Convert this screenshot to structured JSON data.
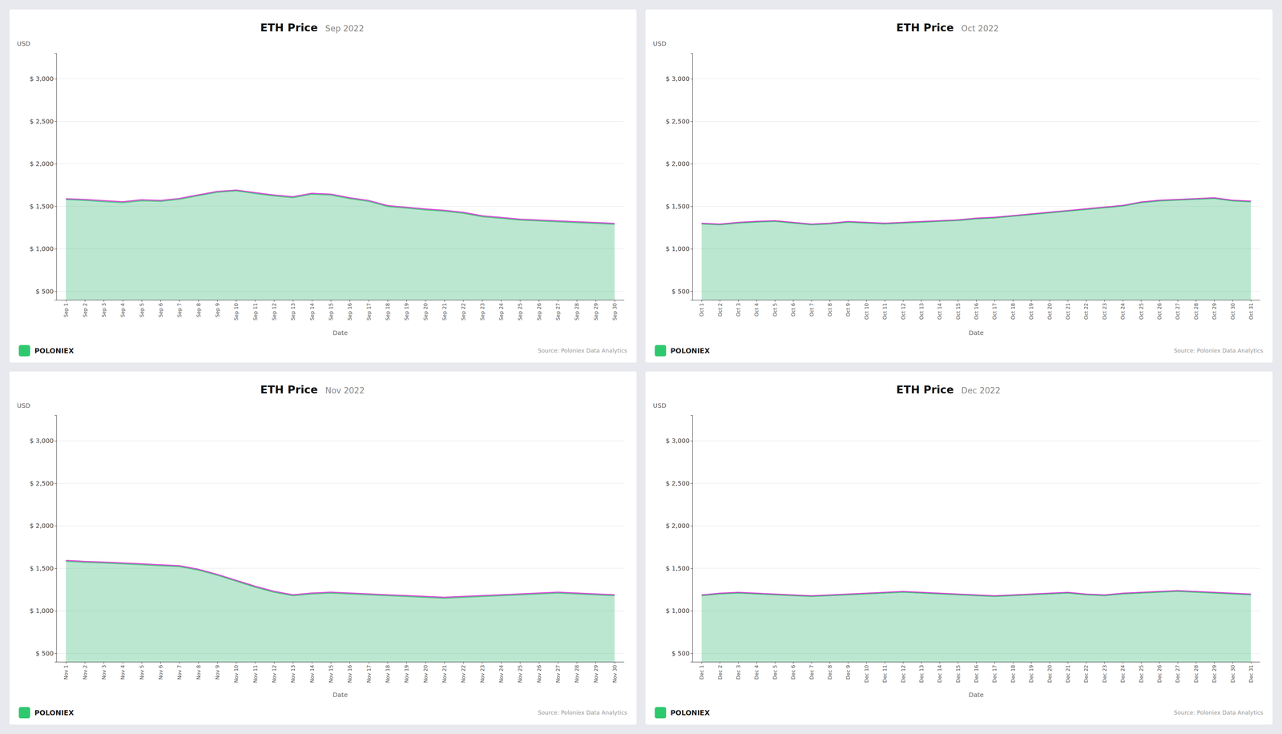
{
  "chart_data": [
    {
      "type": "area",
      "title": "ETH Price",
      "subtitle": "Sep 2022",
      "xlabel": "Date",
      "ylabel": "USD",
      "categories": [
        "Sep 1",
        "Sep 2",
        "Sep 3",
        "Sep 4",
        "Sep 5",
        "Sep 6",
        "Sep 7",
        "Sep 8",
        "Sep 9",
        "Sep 10",
        "Sep 11",
        "Sep 12",
        "Sep 13",
        "Sep 14",
        "Sep 15",
        "Sep 16",
        "Sep 17",
        "Sep 18",
        "Sep 19",
        "Sep 20",
        "Sep 21",
        "Sep 22",
        "Sep 23",
        "Sep 24",
        "Sep 25",
        "Sep 26",
        "Sep 27",
        "Sep 28",
        "Sep 29",
        "Sep 30"
      ],
      "series": [
        {
          "color": "#3dba78",
          "values": [
            1580,
            1570,
            1555,
            1542,
            1565,
            1558,
            1582,
            1625,
            1665,
            1682,
            1650,
            1622,
            1602,
            1642,
            1632,
            1590,
            1558,
            1498,
            1478,
            1458,
            1442,
            1418,
            1378,
            1358,
            1338,
            1328,
            1318,
            1308,
            1298,
            1288
          ]
        },
        {
          "color": "#cc44cc",
          "values": [
            1590,
            1582,
            1568,
            1555,
            1578,
            1570,
            1594,
            1636,
            1676,
            1692,
            1662,
            1634,
            1614,
            1654,
            1644,
            1602,
            1570,
            1510,
            1490,
            1470,
            1454,
            1430,
            1390,
            1370,
            1350,
            1340,
            1330,
            1320,
            1310,
            1300
          ]
        }
      ],
      "ylim": [
        400,
        3300
      ],
      "yticks": [
        {
          "value": 500,
          "label": "$ 500"
        },
        {
          "value": 1000,
          "label": "$ 1,000"
        },
        {
          "value": 1500,
          "label": "$ 1,500"
        },
        {
          "value": 2000,
          "label": "$ 2,000"
        },
        {
          "value": 2500,
          "label": "$ 2,500"
        },
        {
          "value": 3000,
          "label": "$ 3,000"
        }
      ],
      "grid": true,
      "annotations": [
        "POLONIEX",
        "Source: Poloniex Data Analytics"
      ]
    },
    {
      "type": "area",
      "title": "ETH Price",
      "subtitle": "Oct 2022",
      "xlabel": "Date",
      "ylabel": "USD",
      "categories": [
        "Oct 1",
        "Oct 2",
        "Oct 3",
        "Oct 4",
        "Oct 5",
        "Oct 6",
        "Oct 7",
        "Oct 8",
        "Oct 9",
        "Oct 10",
        "Oct 11",
        "Oct 12",
        "Oct 13",
        "Oct 14",
        "Oct 15",
        "Oct 16",
        "Oct 17",
        "Oct 18",
        "Oct 19",
        "Oct 20",
        "Oct 21",
        "Oct 22",
        "Oct 23",
        "Oct 24",
        "Oct 25",
        "Oct 26",
        "Oct 27",
        "Oct 28",
        "Oct 29",
        "Oct 30",
        "Oct 31"
      ],
      "series": [
        {
          "color": "#3dba78",
          "values": [
            1292,
            1282,
            1302,
            1314,
            1322,
            1302,
            1282,
            1292,
            1312,
            1302,
            1292,
            1302,
            1312,
            1322,
            1332,
            1352,
            1362,
            1382,
            1402,
            1422,
            1442,
            1462,
            1482,
            1502,
            1542,
            1562,
            1572,
            1582,
            1592,
            1562,
            1552
          ]
        },
        {
          "color": "#cc44cc",
          "values": [
            1302,
            1292,
            1312,
            1324,
            1332,
            1312,
            1292,
            1302,
            1322,
            1312,
            1302,
            1312,
            1322,
            1332,
            1342,
            1362,
            1372,
            1392,
            1412,
            1432,
            1452,
            1472,
            1492,
            1512,
            1552,
            1572,
            1582,
            1592,
            1602,
            1572,
            1562
          ]
        }
      ],
      "ylim": [
        400,
        3300
      ],
      "yticks": [
        {
          "value": 500,
          "label": "$ 500"
        },
        {
          "value": 1000,
          "label": "$ 1,000"
        },
        {
          "value": 1500,
          "label": "$ 1,500"
        },
        {
          "value": 2000,
          "label": "$ 2,000"
        },
        {
          "value": 2500,
          "label": "$ 2,500"
        },
        {
          "value": 3000,
          "label": "$ 3,000"
        }
      ],
      "grid": true,
      "annotations": [
        "POLONIEX",
        "Source: Poloniex Data Analytics"
      ]
    },
    {
      "type": "area",
      "title": "ETH Price",
      "subtitle": "Nov 2022",
      "xlabel": "Date",
      "ylabel": "USD",
      "categories": [
        "Nov 1",
        "Nov 2",
        "Nov 3",
        "Nov 4",
        "Nov 5",
        "Nov 6",
        "Nov 7",
        "Nov 8",
        "Nov 9",
        "Nov 10",
        "Nov 11",
        "Nov 12",
        "Nov 13",
        "Nov 14",
        "Nov 15",
        "Nov 16",
        "Nov 17",
        "Nov 18",
        "Nov 19",
        "Nov 20",
        "Nov 21",
        "Nov 22",
        "Nov 23",
        "Nov 24",
        "Nov 25",
        "Nov 26",
        "Nov 27",
        "Nov 28",
        "Nov 29",
        "Nov 30"
      ],
      "series": [
        {
          "color": "#3dba78",
          "values": [
            1582,
            1570,
            1562,
            1552,
            1542,
            1530,
            1520,
            1478,
            1418,
            1348,
            1278,
            1218,
            1178,
            1198,
            1208,
            1198,
            1188,
            1178,
            1168,
            1158,
            1148,
            1158,
            1168,
            1178,
            1188,
            1198,
            1208,
            1198,
            1188,
            1178
          ]
        },
        {
          "color": "#cc44cc",
          "values": [
            1594,
            1582,
            1574,
            1564,
            1554,
            1542,
            1532,
            1490,
            1430,
            1360,
            1290,
            1230,
            1190,
            1210,
            1220,
            1210,
            1200,
            1190,
            1180,
            1170,
            1160,
            1170,
            1180,
            1190,
            1200,
            1210,
            1220,
            1210,
            1200,
            1190
          ]
        }
      ],
      "ylim": [
        400,
        3300
      ],
      "yticks": [
        {
          "value": 500,
          "label": "$ 500"
        },
        {
          "value": 1000,
          "label": "$ 1,000"
        },
        {
          "value": 1500,
          "label": "$ 1,500"
        },
        {
          "value": 2000,
          "label": "$ 2,000"
        },
        {
          "value": 2500,
          "label": "$ 2,500"
        },
        {
          "value": 3000,
          "label": "$ 3,000"
        }
      ],
      "grid": true,
      "annotations": [
        "POLONIEX",
        "Source: Poloniex Data Analytics"
      ]
    },
    {
      "type": "area",
      "title": "ETH Price",
      "subtitle": "Dec 2022",
      "xlabel": "Date",
      "ylabel": "USD",
      "categories": [
        "Dec 1",
        "Dec 2",
        "Dec 3",
        "Dec 4",
        "Dec 5",
        "Dec 6",
        "Dec 7",
        "Dec 8",
        "Dec 9",
        "Dec 10",
        "Dec 11",
        "Dec 12",
        "Dec 13",
        "Dec 14",
        "Dec 15",
        "Dec 16",
        "Dec 17",
        "Dec 18",
        "Dec 19",
        "Dec 20",
        "Dec 21",
        "Dec 22",
        "Dec 23",
        "Dec 24",
        "Dec 25",
        "Dec 26",
        "Dec 27",
        "Dec 28",
        "Dec 29",
        "Dec 30",
        "Dec 31"
      ],
      "series": [
        {
          "color": "#3dba78",
          "values": [
            1178,
            1198,
            1208,
            1198,
            1188,
            1178,
            1168,
            1178,
            1188,
            1198,
            1208,
            1218,
            1208,
            1198,
            1188,
            1178,
            1168,
            1178,
            1188,
            1198,
            1208,
            1188,
            1178,
            1198,
            1208,
            1218,
            1228,
            1218,
            1208,
            1198,
            1188
          ]
        },
        {
          "color": "#cc44cc",
          "values": [
            1188,
            1208,
            1218,
            1208,
            1198,
            1188,
            1178,
            1188,
            1198,
            1208,
            1218,
            1228,
            1218,
            1208,
            1198,
            1188,
            1178,
            1188,
            1198,
            1208,
            1218,
            1198,
            1188,
            1208,
            1218,
            1228,
            1238,
            1228,
            1218,
            1208,
            1198
          ]
        }
      ],
      "ylim": [
        400,
        3300
      ],
      "yticks": [
        {
          "value": 500,
          "label": "$ 500"
        },
        {
          "value": 1000,
          "label": "$ 1,000"
        },
        {
          "value": 1500,
          "label": "$ 1,500"
        },
        {
          "value": 2000,
          "label": "$ 2,000"
        },
        {
          "value": 2500,
          "label": "$ 2,500"
        },
        {
          "value": 3000,
          "label": "$ 3,000"
        }
      ],
      "grid": true,
      "annotations": [
        "POLONIEX",
        "Source: Poloniex Data Analytics"
      ]
    }
  ]
}
